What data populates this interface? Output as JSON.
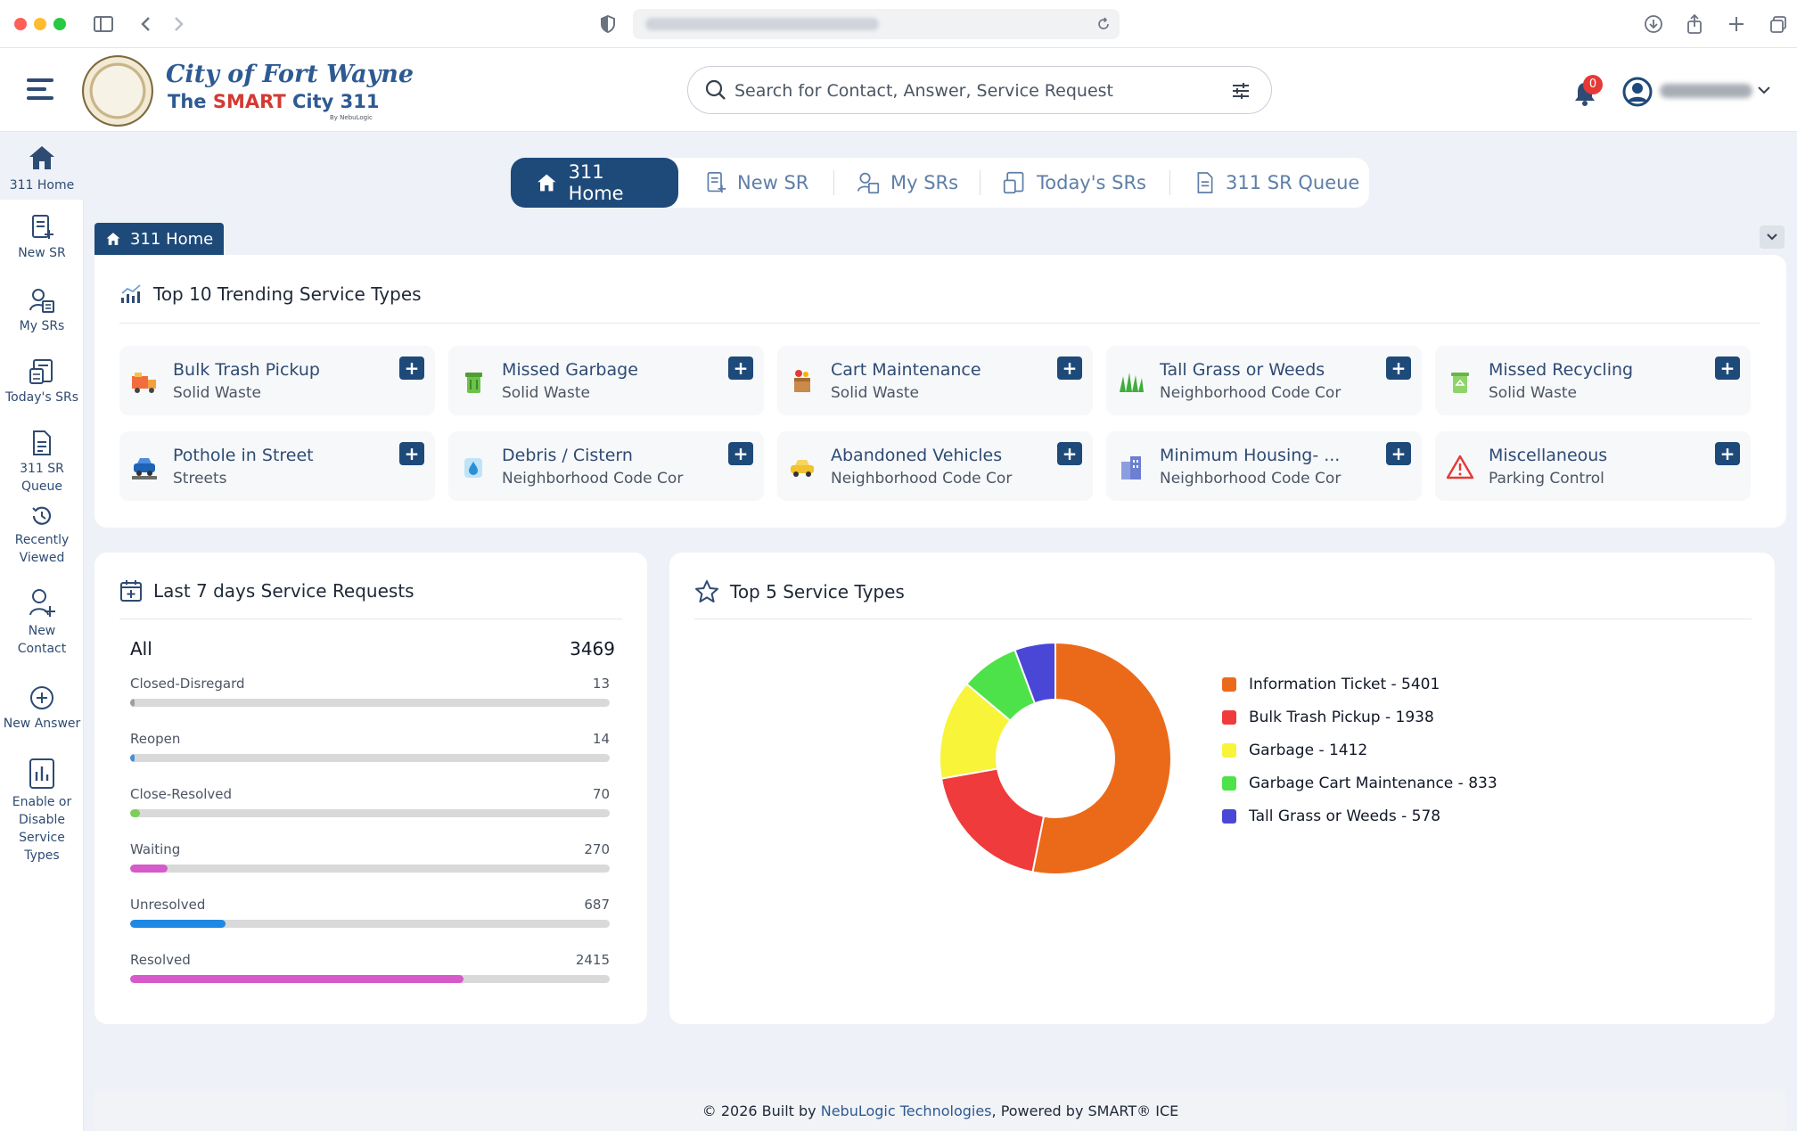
{
  "header": {
    "brand_line1": "City of Fort Wayne",
    "brand_line2_prefix": "The ",
    "brand_line2_smart": "SMART",
    "brand_line2_rest": " City 311",
    "brand_byline": "By NebuLogic",
    "search_placeholder": "Search for Contact, Answer, Service Request",
    "notification_count": "0"
  },
  "rail": {
    "items": [
      {
        "label": "311 Home",
        "icon": "home-icon"
      },
      {
        "label": "New SR",
        "icon": "new-document-icon"
      },
      {
        "label": "My SRs",
        "icon": "user-list-icon"
      },
      {
        "label": "Today's SRs",
        "icon": "today-list-icon"
      },
      {
        "label": "311 SR Queue",
        "icon": "queue-document-icon"
      },
      {
        "label": "Recently Viewed",
        "icon": "history-icon"
      },
      {
        "label": "New Contact",
        "icon": "add-user-icon"
      },
      {
        "label": "New Answer",
        "icon": "plus-circle-icon"
      },
      {
        "label": "Enable or Disable Service Types",
        "icon": "bar-chart-icon"
      }
    ]
  },
  "tabs": [
    {
      "label": "311 Home",
      "active": true
    },
    {
      "label": "New SR"
    },
    {
      "label": "My SRs"
    },
    {
      "label": "Today's SRs"
    },
    {
      "label": "311 SR Queue"
    }
  ],
  "breadcrumb": "311 Home",
  "trending": {
    "title": "Top 10 Trending Service Types",
    "cards": [
      {
        "title": "Bulk Trash Pickup",
        "sub": "Solid Waste",
        "icon": "truck-icon"
      },
      {
        "title": "Missed Garbage",
        "sub": "Solid Waste",
        "icon": "garbage-bin-icon"
      },
      {
        "title": "Cart Maintenance",
        "sub": "Solid Waste",
        "icon": "cart-box-icon"
      },
      {
        "title": "Tall Grass or Weeds",
        "sub": "Neighborhood Code Cor",
        "icon": "grass-icon"
      },
      {
        "title": "Missed Recycling",
        "sub": "Solid Waste",
        "icon": "recycle-bin-icon"
      },
      {
        "title": "Pothole in Street",
        "sub": "Streets",
        "icon": "car-pothole-icon"
      },
      {
        "title": "Debris / Cistern",
        "sub": "Neighborhood Code Cor",
        "icon": "water-drop-icon"
      },
      {
        "title": "Abandoned Vehicles",
        "sub": "Neighborhood Code Cor",
        "icon": "car-icon"
      },
      {
        "title": "Minimum Housing- ...",
        "sub": "Neighborhood Code Cor",
        "icon": "building-icon"
      },
      {
        "title": "Miscellaneous",
        "sub": "Parking Control",
        "icon": "warning-icon"
      }
    ]
  },
  "last7": {
    "title": "Last 7 days Service Requests",
    "all_label": "All",
    "all_value": "3469",
    "stats": [
      {
        "label": "Closed-Disregard",
        "value": "13",
        "fraction": 0.004,
        "color": "#9e9e9e"
      },
      {
        "label": "Reopen",
        "value": "14",
        "fraction": 0.004,
        "color": "#4a90d9"
      },
      {
        "label": "Close-Resolved",
        "value": "70",
        "fraction": 0.02,
        "color": "#7ccf5a"
      },
      {
        "label": "Waiting",
        "value": "270",
        "fraction": 0.078,
        "color": "#d65ac9"
      },
      {
        "label": "Unresolved",
        "value": "687",
        "fraction": 0.198,
        "color": "#1e88e5"
      },
      {
        "label": "Resolved",
        "value": "2415",
        "fraction": 0.696,
        "color": "#d65ac9"
      }
    ]
  },
  "top5": {
    "title": "Top 5 Service Types"
  },
  "chart_data": {
    "type": "pie",
    "categories": [
      "Information Ticket",
      "Bulk Trash Pickup",
      "Garbage",
      "Garbage Cart Maintenance",
      "Tall Grass or Weeds"
    ],
    "values": [
      5401,
      1938,
      1412,
      833,
      578
    ],
    "colors": [
      "#eb6a1a",
      "#ef3b3b",
      "#f7f43a",
      "#4ee24a",
      "#4a46d6"
    ],
    "legend_labels": [
      "Information Ticket  -  5401",
      "Bulk Trash Pickup  -  1938",
      "Garbage  -  1412",
      "Garbage Cart Maintenance  -  833",
      "Tall Grass or Weeds  -  578"
    ],
    "donut": true,
    "legend_position": "right"
  },
  "footer": {
    "prefix": "© 2026 Built by ",
    "company": "NebuLogic Technologies",
    "suffix": ", Powered by SMART® ICE"
  }
}
